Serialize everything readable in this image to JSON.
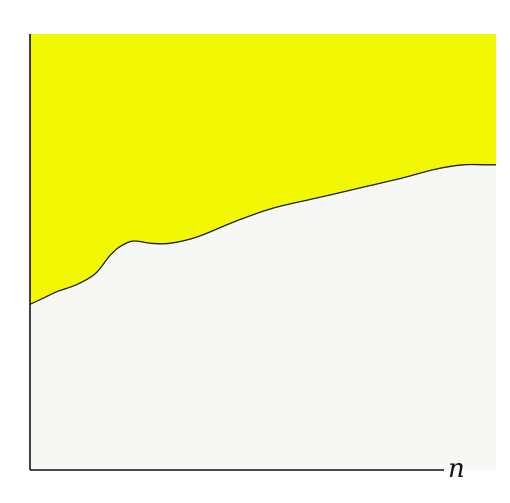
{
  "chart_data": {
    "type": "area",
    "xlabel": "n",
    "ylabel": "",
    "title": "",
    "grid": false,
    "legend": "none",
    "fill_color": "#f2f804",
    "background_color": "#f7f7f5",
    "axis_color": "#111111",
    "x": [
      0,
      0.03,
      0.06,
      0.1,
      0.14,
      0.17,
      0.19,
      0.22,
      0.26,
      0.3,
      0.36,
      0.44,
      0.52,
      0.62,
      0.72,
      0.8,
      0.87,
      0.93,
      0.98,
      1.0
    ],
    "series": [
      {
        "values": [
          0.38,
          0.395,
          0.41,
          0.425,
          0.45,
          0.49,
          0.51,
          0.525,
          0.52,
          0.52,
          0.535,
          0.57,
          0.6,
          0.625,
          0.65,
          0.67,
          0.69,
          0.7,
          0.7,
          0.7
        ]
      }
    ],
    "xlim": [
      0,
      1
    ],
    "ylim": [
      0,
      1
    ]
  }
}
